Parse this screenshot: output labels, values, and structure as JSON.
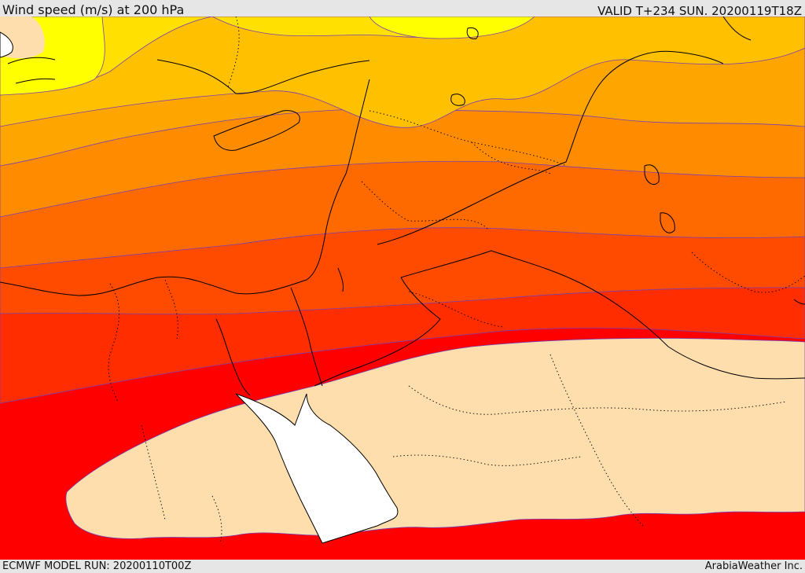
{
  "header": {
    "title": "Wind speed (m/s) at 200 hPa",
    "valid": "VALID T+234 SUN. 20200119T18Z"
  },
  "footer": {
    "model_run": "ECMWF MODEL RUN: 20200110T00Z",
    "provider": "ArabiaWeather Inc."
  },
  "colors": {
    "band_1": "#ffff00",
    "band_2": "#ffe000",
    "band_3": "#ffc000",
    "band_4": "#ffa500",
    "band_5": "#ff8c00",
    "band_6": "#ff6a00",
    "band_7": "#ff4b00",
    "band_8": "#ff2d00",
    "band_9": "#ff0000",
    "low_speed_area": "#ffdead",
    "sea_mask": "#ffffff"
  }
}
